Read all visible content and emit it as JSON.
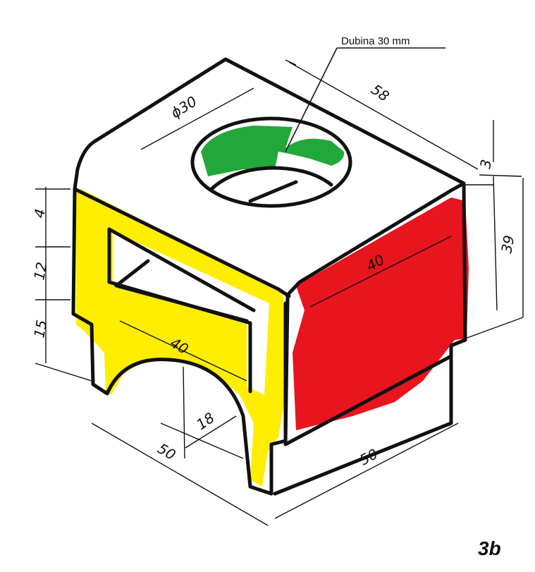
{
  "annotation": {
    "depth_note": "Dubina 30 mm"
  },
  "figure_label": "3b",
  "dimensions": {
    "hole_diameter": "ϕ30",
    "top_depth": "58",
    "top_step": "3",
    "right_height": "39",
    "right_width": "40",
    "front_slot_width": "40",
    "left_top": "4",
    "left_mid": "12",
    "left_low": "15",
    "arch_radius": "18",
    "bottom_left": "50",
    "bottom_right": "50"
  },
  "colors": {
    "yellow_face": "#ffee00",
    "red_face": "#e8141e",
    "green_hole": "#22a83a",
    "line": "#111111"
  }
}
